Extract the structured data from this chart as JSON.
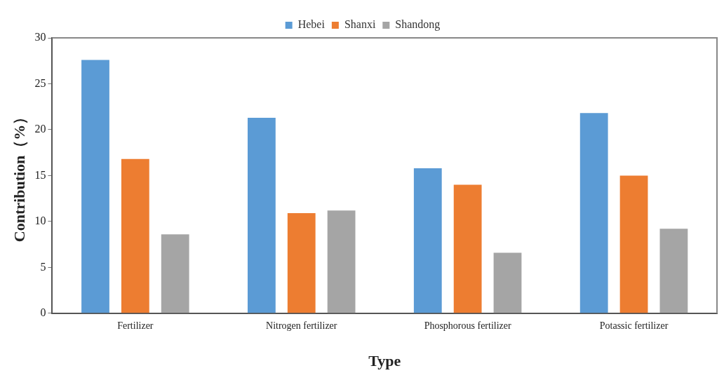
{
  "chart_data": {
    "type": "bar",
    "xlabel": "Type",
    "ylabel": "Contribution（%）",
    "categories": [
      "Fertilizer",
      "Nitrogen fertilizer",
      "Phosphorous fertilizer",
      "Potassic fertilizer"
    ],
    "series": [
      {
        "name": "Hebei",
        "color": "#5b9bd5",
        "values": [
          27.6,
          21.3,
          15.8,
          21.8
        ]
      },
      {
        "name": "Shanxi",
        "color": "#ed7d31",
        "values": [
          16.8,
          10.9,
          14.0,
          15.0
        ]
      },
      {
        "name": "Shandong",
        "color": "#a5a5a5",
        "values": [
          8.6,
          11.2,
          6.6,
          9.2
        ]
      }
    ],
    "ylim": [
      0,
      30
    ],
    "yticks": [
      0,
      5,
      10,
      15,
      20,
      25,
      30
    ],
    "grid": false,
    "legend": "top"
  }
}
